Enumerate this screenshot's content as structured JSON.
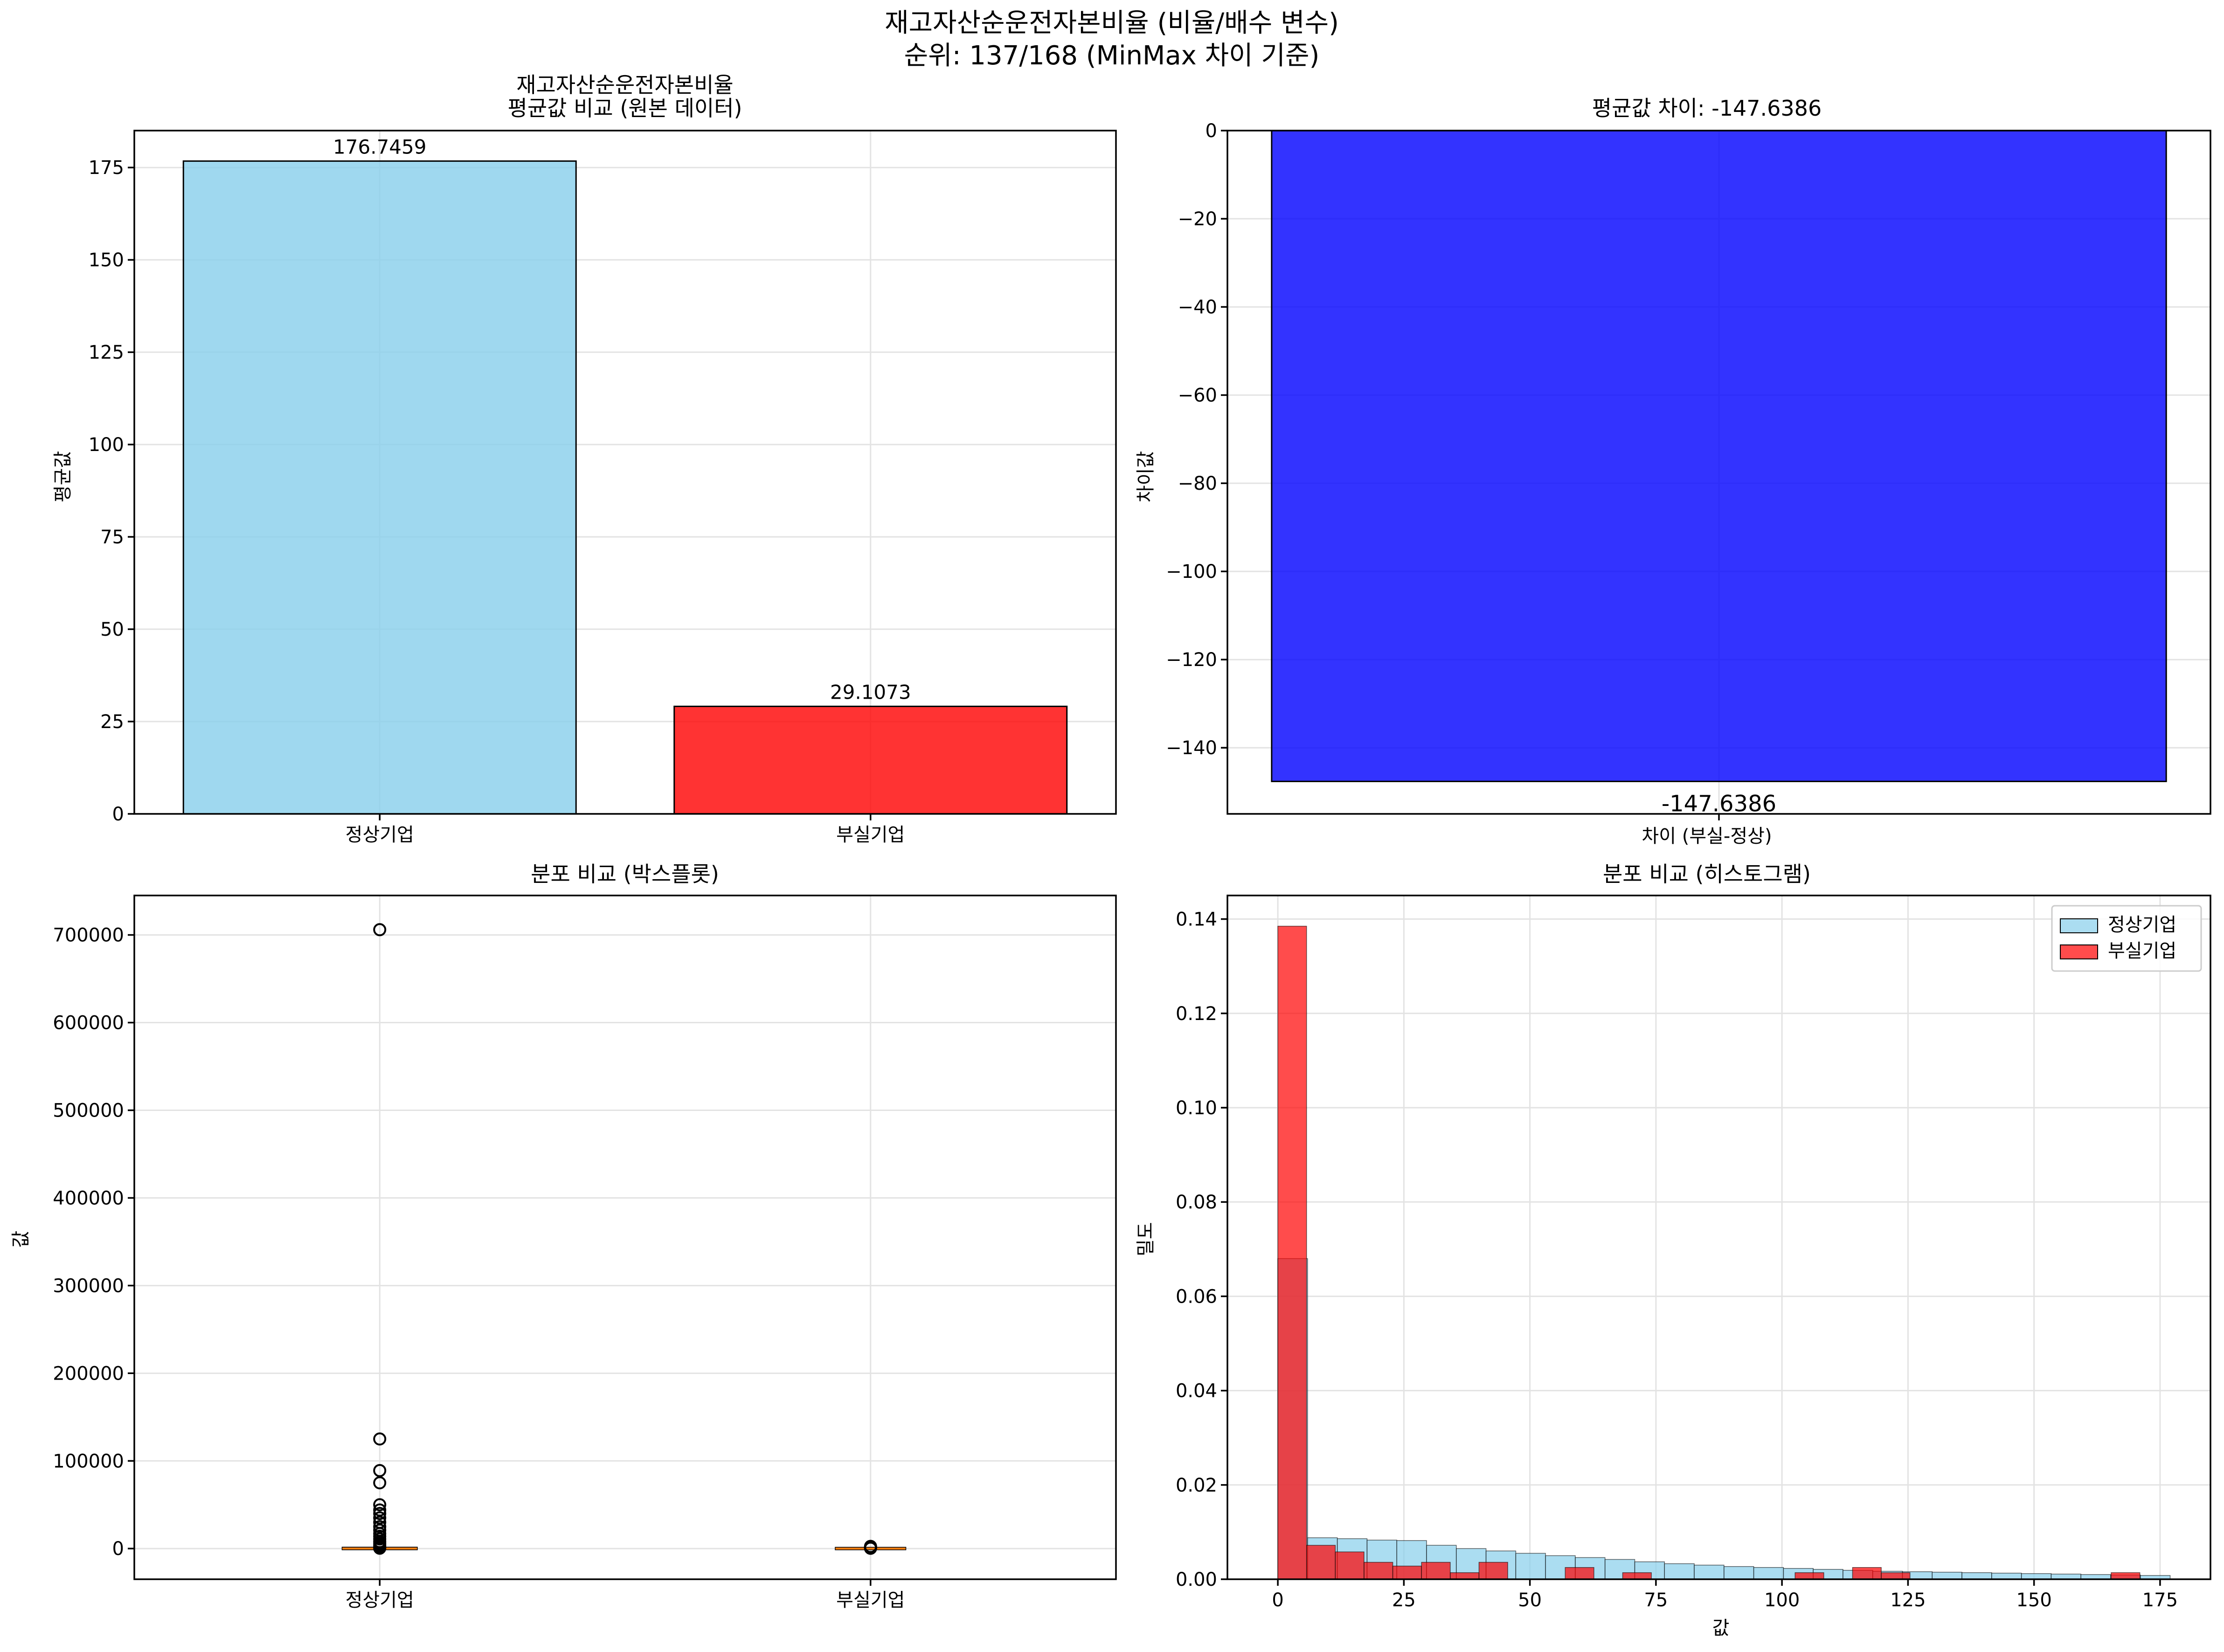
{
  "figure": {
    "suptitle_line1": "재고자산순운전자본비율 (비율/배수 변수)",
    "suptitle_line2": "순위: 137/168 (MinMax 차이 기준)"
  },
  "colors": {
    "normal": "#87ceeb",
    "distress": "#ff0000",
    "diff": "#0000ff",
    "median": "#ff7f0e"
  },
  "chart_data": [
    {
      "id": "mean",
      "type": "bar",
      "title_line1": "재고자산순운전자본비율",
      "title_line2": "평균값 비교 (원본 데이터)",
      "xlabel": "",
      "ylabel": "평균값",
      "categories": [
        "정상기업",
        "부실기업"
      ],
      "values": [
        176.7459,
        29.1073
      ],
      "value_labels": [
        "176.7459",
        "29.1073"
      ],
      "ylim": [
        0,
        185
      ],
      "yticks": [
        0,
        25,
        50,
        75,
        100,
        125,
        150,
        175
      ],
      "grid": true
    },
    {
      "id": "diff",
      "type": "bar",
      "title": "평균값 차이: -147.6386",
      "xlabel": "차이 (부실-정상)",
      "ylabel": "차이값",
      "categories": [
        ""
      ],
      "values": [
        -147.6386
      ],
      "value_labels": [
        "-147.6386"
      ],
      "ylim": [
        -155,
        0
      ],
      "yticks": [
        0,
        -20,
        -40,
        -60,
        -80,
        -100,
        -120,
        -140
      ],
      "grid": true
    },
    {
      "id": "box",
      "type": "box",
      "title": "분포 비교 (박스플롯)",
      "xlabel": "",
      "ylabel": "값",
      "categories": [
        "정상기업",
        "부실기업"
      ],
      "medians": [
        50,
        5
      ],
      "boxes": [
        [
          15,
          180
        ],
        [
          1,
          40
        ]
      ],
      "outliers": [
        [
          706000,
          125000,
          89000,
          75000,
          50000,
          44000,
          40000,
          35000,
          30000,
          25000,
          21000,
          17000,
          14000,
          11000,
          8000,
          6000,
          4000,
          2500,
          1500,
          800,
          400
        ],
        [
          2500,
          1800,
          1200,
          700,
          300
        ]
      ],
      "ylim": [
        -35000,
        745000
      ],
      "yticks": [
        0,
        100000,
        200000,
        300000,
        400000,
        500000,
        600000,
        700000
      ],
      "grid": true
    },
    {
      "id": "hist",
      "type": "histogram",
      "title": "분포 비교 (히스토그램)",
      "xlabel": "값",
      "ylabel": "밀도",
      "series": [
        {
          "name": "정상기업",
          "bin_start": 0,
          "bin_width": 5.9,
          "density": [
            0.068,
            0.0088,
            0.0086,
            0.0083,
            0.0082,
            0.0072,
            0.0065,
            0.006,
            0.0055,
            0.005,
            0.0046,
            0.0042,
            0.0037,
            0.0033,
            0.003,
            0.0027,
            0.0025,
            0.0023,
            0.0021,
            0.0019,
            0.0017,
            0.0016,
            0.0015,
            0.0014,
            0.0013,
            0.0012,
            0.0011,
            0.001,
            0.0009,
            0.0008
          ]
        },
        {
          "name": "부실기업",
          "bin_start": 0,
          "bin_width": 5.7,
          "density": [
            0.1385,
            0.0072,
            0.0058,
            0.0036,
            0.0028,
            0.0036,
            0.0014,
            0.0036,
            0,
            0,
            0.0025,
            0,
            0.0014,
            0,
            0,
            0,
            0,
            0,
            0.0014,
            0,
            0.0025,
            0.0014,
            0,
            0,
            0,
            0,
            0,
            0,
            0,
            0.0014
          ]
        }
      ],
      "xlim": [
        -10,
        185
      ],
      "ylim": [
        0,
        0.145
      ],
      "xticks": [
        0,
        25,
        50,
        75,
        100,
        125,
        150,
        175
      ],
      "yticks": [
        0,
        0.02,
        0.04,
        0.06,
        0.08,
        0.1,
        0.12,
        0.14
      ],
      "ytick_labels": [
        "0.00",
        "0.02",
        "0.04",
        "0.06",
        "0.08",
        "0.10",
        "0.12",
        "0.14"
      ],
      "legend_position": "top-right",
      "grid": true
    }
  ]
}
